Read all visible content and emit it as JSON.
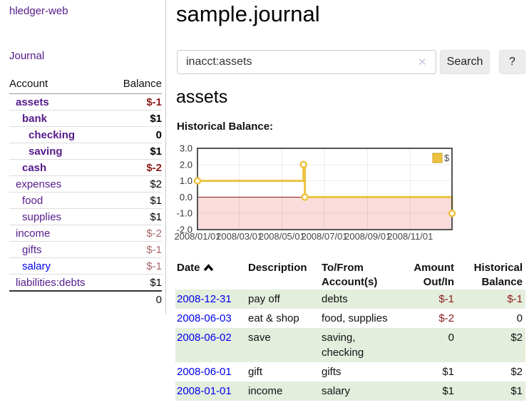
{
  "app": {
    "brand": "hledger-web"
  },
  "sidebar": {
    "nav_journal": "Journal",
    "accounts": {
      "col_account": "Account",
      "col_balance": "Balance",
      "rows": [
        {
          "name": "assets",
          "balance": "$-1",
          "depth": 1,
          "bold": true,
          "neg": "strong",
          "link": "purple"
        },
        {
          "name": "bank",
          "balance": "$1",
          "depth": 2,
          "bold": true,
          "neg": "none",
          "link": "purple"
        },
        {
          "name": "checking",
          "balance": "0",
          "depth": 3,
          "bold": true,
          "neg": "none",
          "link": "purple"
        },
        {
          "name": "saving",
          "balance": "$1",
          "depth": 3,
          "bold": true,
          "neg": "none",
          "link": "purple"
        },
        {
          "name": "cash",
          "balance": "$-2",
          "depth": 2,
          "bold": true,
          "neg": "strong",
          "link": "purple"
        },
        {
          "name": "expenses",
          "balance": "$2",
          "depth": 1,
          "bold": false,
          "neg": "none",
          "link": "purple"
        },
        {
          "name": "food",
          "balance": "$1",
          "depth": 2,
          "bold": false,
          "neg": "none",
          "link": "purple"
        },
        {
          "name": "supplies",
          "balance": "$1",
          "depth": 2,
          "bold": false,
          "neg": "none",
          "link": "purple"
        },
        {
          "name": "income",
          "balance": "$-2",
          "depth": 1,
          "bold": false,
          "neg": "muted",
          "link": "purple"
        },
        {
          "name": "gifts",
          "balance": "$-1",
          "depth": 2,
          "bold": false,
          "neg": "muted",
          "link": "purple"
        },
        {
          "name": "salary",
          "balance": "$-1",
          "depth": 2,
          "bold": false,
          "neg": "muted",
          "link": "blue"
        },
        {
          "name": "liabilities:debts",
          "balance": "$1",
          "depth": 1,
          "bold": false,
          "neg": "none",
          "link": "purple"
        }
      ],
      "total": "0"
    }
  },
  "main": {
    "title": "sample.journal",
    "search": {
      "value": "inacct:assets",
      "clear": "✕",
      "button": "Search",
      "help": "?"
    },
    "heading": "assets",
    "chart_title": "Historical Balance:",
    "register": {
      "headers": [
        {
          "label": "Date",
          "sort": "asc"
        },
        {
          "label": "Description"
        },
        {
          "label": "To/From Account(s)"
        },
        {
          "label": "Amount Out/In",
          "align": "right"
        },
        {
          "label": "Historical Balance",
          "align": "right"
        }
      ],
      "rows": [
        {
          "date": "2008-12-31",
          "description": "pay off",
          "accounts": [
            "debts"
          ],
          "wrap": false,
          "amount": "$-1",
          "balance": "$-1",
          "amount_neg": true,
          "balance_neg": true
        },
        {
          "date": "2008-06-03",
          "description": "eat & shop",
          "accounts": [
            "food",
            "supplies"
          ],
          "wrap": false,
          "amount": "$-2",
          "balance": "0",
          "amount_neg": true,
          "balance_neg": false
        },
        {
          "date": "2008-06-02",
          "description": "save",
          "accounts": [
            "saving",
            "checking"
          ],
          "wrap": true,
          "amount": "0",
          "balance": "$2",
          "amount_neg": false,
          "balance_neg": false
        },
        {
          "date": "2008-06-01",
          "description": "gift",
          "accounts": [
            "gifts"
          ],
          "wrap": false,
          "amount": "$1",
          "balance": "$2",
          "amount_neg": false,
          "balance_neg": false
        },
        {
          "date": "2008-01-01",
          "description": "income",
          "accounts": [
            "salary"
          ],
          "wrap": false,
          "amount": "$1",
          "balance": "$1",
          "amount_neg": false,
          "balance_neg": false
        }
      ]
    }
  },
  "chart_data": {
    "type": "line",
    "title": "Historical Balance:",
    "step": true,
    "series": [
      {
        "name": "$",
        "color": "#edc240",
        "points": [
          [
            "2008-01-01",
            1
          ],
          [
            "2008-06-01",
            2
          ],
          [
            "2008-06-03",
            0
          ],
          [
            "2008-12-31",
            -1
          ]
        ]
      }
    ],
    "xlim": [
      "2008-01-01",
      "2008-12-31"
    ],
    "ylim": [
      -2,
      3
    ],
    "y_ticks": [
      "3.0",
      "2.0",
      "1.0",
      "0.0",
      "-1.0",
      "-2.0"
    ],
    "x_ticks": [
      "2008/01/01",
      "2008/03/01",
      "2008/05/01",
      "2008/07/01",
      "2008/09/01",
      "2008/11/01"
    ],
    "grid": true,
    "legend": {
      "label": "$",
      "position": "top-right"
    },
    "negative_region_fill": "#fbdcdc",
    "zero_line_color": "#8b1a1a"
  },
  "colors": {
    "link_purple": "#551a8b",
    "link_blue": "#0000ee",
    "negative_strong": "#8b1a1a",
    "negative_muted": "#a86868",
    "row_green": "#e4eedd",
    "accent_yellow": "#edc240",
    "chart_border": "#545454"
  }
}
